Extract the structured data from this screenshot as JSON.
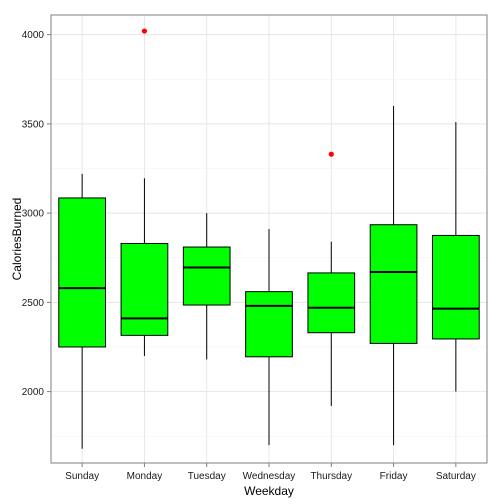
{
  "chart_data": {
    "type": "boxplot",
    "xlabel": "Weekday",
    "ylabel": "CaloriesBurned",
    "ylim": [
      1600,
      4110
    ],
    "yticks": [
      2000,
      2500,
      3000,
      3500,
      4000
    ],
    "grid": true,
    "box_fill": "#00ff00",
    "box_stroke": "#000000",
    "outlier_color": "#ff0000",
    "categories": [
      "Sunday",
      "Monday",
      "Tuesday",
      "Wednesday",
      "Thursday",
      "Friday",
      "Saturday"
    ],
    "boxes": [
      {
        "min": 1680,
        "q1": 2250,
        "median": 2580,
        "q3": 3085,
        "max": 3220,
        "outliers": []
      },
      {
        "min": 2200,
        "q1": 2315,
        "median": 2410,
        "q3": 2830,
        "max": 3195,
        "outliers": [
          4020
        ]
      },
      {
        "min": 2180,
        "q1": 2485,
        "median": 2695,
        "q3": 2810,
        "max": 3000,
        "outliers": []
      },
      {
        "min": 1700,
        "q1": 2195,
        "median": 2480,
        "q3": 2560,
        "max": 2910,
        "outliers": []
      },
      {
        "min": 1920,
        "q1": 2330,
        "median": 2470,
        "q3": 2665,
        "max": 2840,
        "outliers": [
          3330
        ]
      },
      {
        "min": 1700,
        "q1": 2270,
        "median": 2670,
        "q3": 2935,
        "max": 3600,
        "outliers": []
      },
      {
        "min": 2000,
        "q1": 2295,
        "median": 2465,
        "q3": 2875,
        "max": 3510,
        "outliers": []
      }
    ]
  }
}
